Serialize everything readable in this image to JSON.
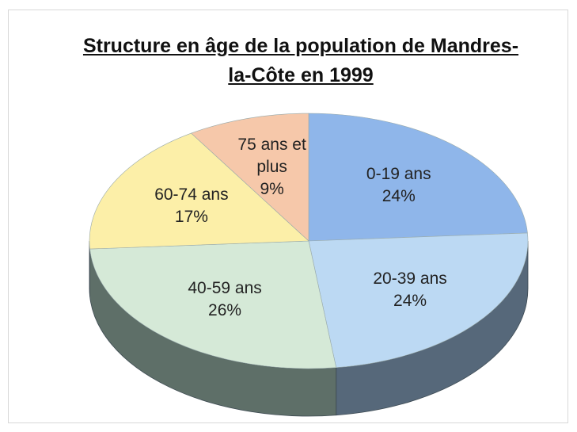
{
  "chart_data": {
    "type": "pie",
    "title": "Structure en âge de la population de Mandres-la-Côte en 1999",
    "categories": [
      "0-19 ans",
      "20-39 ans",
      "40-59 ans",
      "60-74 ans",
      "75 ans et plus"
    ],
    "values": [
      24,
      24,
      26,
      17,
      9
    ],
    "value_labels": [
      "24%",
      "24%",
      "26%",
      "17%",
      "9%"
    ],
    "colors": [
      "#8fb6ea",
      "#bcd9f3",
      "#d5e9d7",
      "#fcefa8",
      "#f6c8aa"
    ],
    "side_colors": [
      "#4f6272",
      "#56687a",
      "#5e6f68",
      "#7a7450",
      "#7a6555"
    ],
    "start_angle": 0,
    "direction": "clockwise",
    "style": "3d"
  }
}
